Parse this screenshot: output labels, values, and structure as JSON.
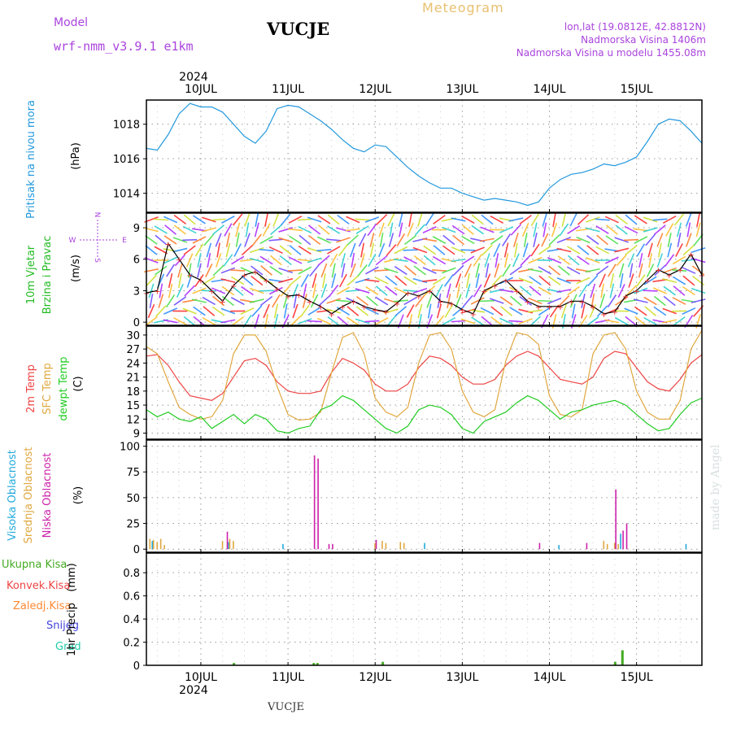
{
  "header": {
    "model_label": "Model",
    "model_name": "wrf-nmm_v3.9.1  e1km",
    "station": "VUCJE",
    "meteogram_label": "Meteogram",
    "lonlat": "lon,lat (19.0812E, 42.8812N)",
    "elevation": "Nadmorska Visina 1406m",
    "model_elevation": "Nadmorska Visina u modelu 1455.08m"
  },
  "footer": {
    "station": "VUCJE",
    "credit": "made by Angel"
  },
  "colors": {
    "pressure": "#2299dd",
    "t2m": "#ee4444",
    "sfc": "#e0a840",
    "dewpt": "#22cc22",
    "high": "#22aadd",
    "mid": "#e0a840",
    "low": "#cc22aa",
    "wind_label": "#22bb22",
    "precip_total": "#44aa22",
    "precip_conv": "#ee4444",
    "precip_frozen": "#ff8833",
    "snow": "#4444dd",
    "graupel": "#22ccaa",
    "model": "#aa44dd"
  },
  "chart_data": {
    "x": {
      "year_top": "2024",
      "year_bottom": "2024",
      "ticks": [
        "10JUL",
        "11JUL",
        "12JUL",
        "13JUL",
        "14JUL",
        "15JUL"
      ],
      "start_hour": -15,
      "end_hour": 138
    },
    "panels": [
      {
        "id": "pressure",
        "type": "line",
        "ylabel": "Pritisak na nivou mora",
        "unit": "(hPa)",
        "yticks": [
          "1014",
          "1016",
          "1018"
        ],
        "ylim": [
          1012.9,
          1019.4
        ],
        "series": [
          {
            "name": "Pritisak na nivou mora",
            "x": [
              -15,
              -12,
              -9,
              -6,
              -3,
              0,
              3,
              6,
              9,
              12,
              15,
              18,
              21,
              24,
              27,
              30,
              33,
              36,
              39,
              42,
              45,
              48,
              51,
              54,
              57,
              60,
              63,
              66,
              69,
              72,
              75,
              78,
              81,
              84,
              87,
              90,
              93,
              96,
              99,
              102,
              105,
              108,
              111,
              114,
              117,
              120,
              123,
              126,
              129,
              132,
              135,
              138
            ],
            "values": [
              1016.6,
              1016.5,
              1017.4,
              1018.6,
              1019.2,
              1019.0,
              1019.0,
              1018.7,
              1018.0,
              1017.3,
              1016.9,
              1017.6,
              1018.9,
              1019.1,
              1019.0,
              1018.6,
              1018.2,
              1017.7,
              1017.1,
              1016.6,
              1016.4,
              1016.8,
              1016.7,
              1016.1,
              1015.5,
              1015.0,
              1014.6,
              1014.3,
              1014.3,
              1014.0,
              1013.8,
              1013.6,
              1013.7,
              1013.6,
              1013.5,
              1013.3,
              1013.5,
              1014.3,
              1014.8,
              1015.1,
              1015.2,
              1015.4,
              1015.7,
              1015.6,
              1015.8,
              1016.1,
              1017.0,
              1018.0,
              1018.3,
              1018.2,
              1017.6,
              1016.9
            ]
          }
        ]
      },
      {
        "id": "wind",
        "type": "line",
        "ylabel": "10m Vjetar",
        "ylabel2": "Brzina i Pravac",
        "unit": "(m/s)",
        "yticks": [
          "0",
          "3",
          "6",
          "9"
        ],
        "ylim": [
          -0.3,
          10.4
        ],
        "compass": {
          "n": "N",
          "s": "S",
          "w": "W",
          "e": "E"
        },
        "series": [
          {
            "name": "10m Vjetar",
            "x": [
              -15,
              -12,
              -9,
              -6,
              -3,
              0,
              3,
              6,
              9,
              12,
              15,
              18,
              21,
              24,
              27,
              30,
              33,
              36,
              39,
              42,
              45,
              48,
              51,
              54,
              57,
              60,
              63,
              66,
              69,
              72,
              75,
              78,
              81,
              84,
              87,
              90,
              93,
              96,
              99,
              102,
              105,
              108,
              111,
              114,
              117,
              120,
              123,
              126,
              129,
              132,
              135,
              138
            ],
            "values": [
              2.8,
              3.0,
              7.5,
              6.0,
              4.5,
              4.0,
              3.0,
              2.0,
              3.5,
              4.5,
              4.8,
              4.0,
              3.2,
              2.5,
              2.6,
              2.0,
              1.5,
              0.8,
              1.5,
              2.0,
              1.5,
              1.2,
              1.0,
              1.8,
              2.8,
              2.5,
              3.0,
              2.0,
              1.8,
              1.2,
              0.8,
              3.0,
              3.5,
              4.0,
              3.0,
              2.0,
              1.5,
              1.5,
              1.5,
              2.0,
              2.0,
              1.5,
              0.8,
              1.0,
              2.5,
              3.0,
              4.0,
              5.0,
              4.5,
              5.0,
              6.5,
              4.5
            ]
          }
        ]
      },
      {
        "id": "temperature",
        "type": "line",
        "ylabel": "2m Temp",
        "ylabel2": "SFC Temp",
        "ylabel3": "dewpt Temp",
        "unit": "(C)",
        "yticks": [
          "9",
          "12",
          "15",
          "18",
          "21",
          "24",
          "27",
          "30"
        ],
        "ylim": [
          7.7,
          31.9
        ],
        "series": [
          {
            "name": "2m Temp",
            "x": [
              -15,
              -12,
              -9,
              -6,
              -3,
              0,
              3,
              6,
              9,
              12,
              15,
              18,
              21,
              24,
              27,
              30,
              33,
              36,
              39,
              42,
              45,
              48,
              51,
              54,
              57,
              60,
              63,
              66,
              69,
              72,
              75,
              78,
              81,
              84,
              87,
              90,
              93,
              96,
              99,
              102,
              105,
              108,
              111,
              114,
              117,
              120,
              123,
              126,
              129,
              132,
              135,
              138
            ],
            "values": [
              25.5,
              25.8,
              23.5,
              20.0,
              17.0,
              16.5,
              16.0,
              17.5,
              21.0,
              24.5,
              25.0,
              23.5,
              20.0,
              18.0,
              17.5,
              17.5,
              18.0,
              22.0,
              25.0,
              24.0,
              22.5,
              19.5,
              18.0,
              18.0,
              19.5,
              23.0,
              25.5,
              25.0,
              23.5,
              21.0,
              19.5,
              19.5,
              20.5,
              23.5,
              25.5,
              26.5,
              25.5,
              23.0,
              20.5,
              20.0,
              19.5,
              21.0,
              25.0,
              26.5,
              26.0,
              23.0,
              20.0,
              18.5,
              18.0,
              20.5,
              24.0,
              25.8
            ]
          },
          {
            "name": "SFC Temp",
            "x": [
              -15,
              -12,
              -9,
              -6,
              -3,
              0,
              3,
              6,
              9,
              12,
              15,
              18,
              21,
              24,
              27,
              30,
              33,
              36,
              39,
              42,
              45,
              48,
              51,
              54,
              57,
              60,
              63,
              66,
              69,
              72,
              75,
              78,
              81,
              84,
              87,
              90,
              93,
              96,
              99,
              102,
              105,
              108,
              111,
              114,
              117,
              120,
              123,
              126,
              129,
              132,
              135,
              138
            ],
            "values": [
              27.5,
              26.0,
              20.0,
              14.5,
              13.0,
              12.0,
              12.5,
              16.0,
              26.0,
              30.0,
              30.0,
              26.5,
              19.0,
              13.0,
              11.8,
              12.0,
              13.5,
              22.0,
              29.5,
              30.5,
              26.0,
              16.5,
              13.5,
              12.5,
              14.5,
              24.0,
              30.0,
              30.5,
              27.0,
              18.0,
              13.5,
              12.5,
              14.0,
              24.5,
              30.5,
              30.0,
              28.0,
              17.0,
              13.0,
              12.5,
              14.0,
              26.0,
              30.0,
              30.5,
              27.0,
              18.0,
              13.5,
              12.0,
              12.0,
              16.0,
              27.0,
              31.0
            ]
          },
          {
            "name": "dewpt Temp",
            "x": [
              -15,
              -12,
              -9,
              -6,
              -3,
              0,
              3,
              6,
              9,
              12,
              15,
              18,
              21,
              24,
              27,
              30,
              33,
              36,
              39,
              42,
              45,
              48,
              51,
              54,
              57,
              60,
              63,
              66,
              69,
              72,
              75,
              78,
              81,
              84,
              87,
              90,
              93,
              96,
              99,
              102,
              105,
              108,
              111,
              114,
              117,
              120,
              123,
              126,
              129,
              132,
              135,
              138
            ],
            "values": [
              14.0,
              12.5,
              13.5,
              12.0,
              11.5,
              12.5,
              10.0,
              11.5,
              13.0,
              11.0,
              13.0,
              12.0,
              9.5,
              9.0,
              10.0,
              10.5,
              14.0,
              15.0,
              17.0,
              16.0,
              14.0,
              12.0,
              10.0,
              9.0,
              10.5,
              14.0,
              15.0,
              14.5,
              13.0,
              10.0,
              9.0,
              11.5,
              12.5,
              13.5,
              15.5,
              17.0,
              16.0,
              14.0,
              12.0,
              13.5,
              14.0,
              15.0,
              15.5,
              16.0,
              15.0,
              13.0,
              11.0,
              9.5,
              10.0,
              13.0,
              15.5,
              16.5
            ]
          }
        ]
      },
      {
        "id": "clouds",
        "type": "bar",
        "ylabel": "Visoka Oblacnost",
        "ylabel2": "Srednja Oblacnost",
        "ylabel3": "Niska Oblacnost",
        "unit": "(%)",
        "yticks": [
          "0",
          "25",
          "50",
          "75",
          "100"
        ],
        "ylim": [
          -3,
          106
        ],
        "series": [
          {
            "name": "Visoka Oblacnost",
            "x": [
              -13,
              8,
              23,
              62,
              99,
              116,
              134
            ],
            "values": [
              8,
              7,
              5,
              6,
              4,
              15,
              5
            ]
          },
          {
            "name": "Srednja Oblacnost",
            "x": [
              -14,
              -13,
              -12,
              -11,
              -10,
              6,
              8,
              9,
              48,
              50,
              51,
              55,
              56,
              111,
              112,
              114,
              115
            ],
            "values": [
              10,
              9,
              7,
              10,
              4,
              8,
              10,
              8,
              6,
              8,
              6,
              7,
              6,
              8,
              5,
              6,
              5
            ]
          },
          {
            "name": "Niska Oblacnost",
            "x": [
              7,
              31,
              32,
              35,
              36,
              48,
              93,
              106,
              114,
              116,
              117
            ],
            "values": [
              17,
              91,
              88,
              5,
              5,
              9,
              6,
              6,
              58,
              18,
              25
            ]
          }
        ]
      },
      {
        "id": "precip",
        "type": "bar",
        "ylabel": "1hr Precip",
        "unit": "(mm)",
        "labels": [
          "Ukupna Kisa",
          "Konvek.Kisa",
          "Zaledj.Kisa",
          "Snijeg",
          "Grad"
        ],
        "yticks": [
          "0",
          "0.2",
          "0.4",
          "0.6",
          "0.8"
        ],
        "ylim": [
          0,
          0.97
        ],
        "series": [
          {
            "name": "Ukupna Kisa",
            "x": [
              9,
              31,
              32,
              50,
              114,
              116
            ],
            "values": [
              0.02,
              0.02,
              0.02,
              0.03,
              0.03,
              0.13
            ]
          }
        ]
      }
    ]
  }
}
